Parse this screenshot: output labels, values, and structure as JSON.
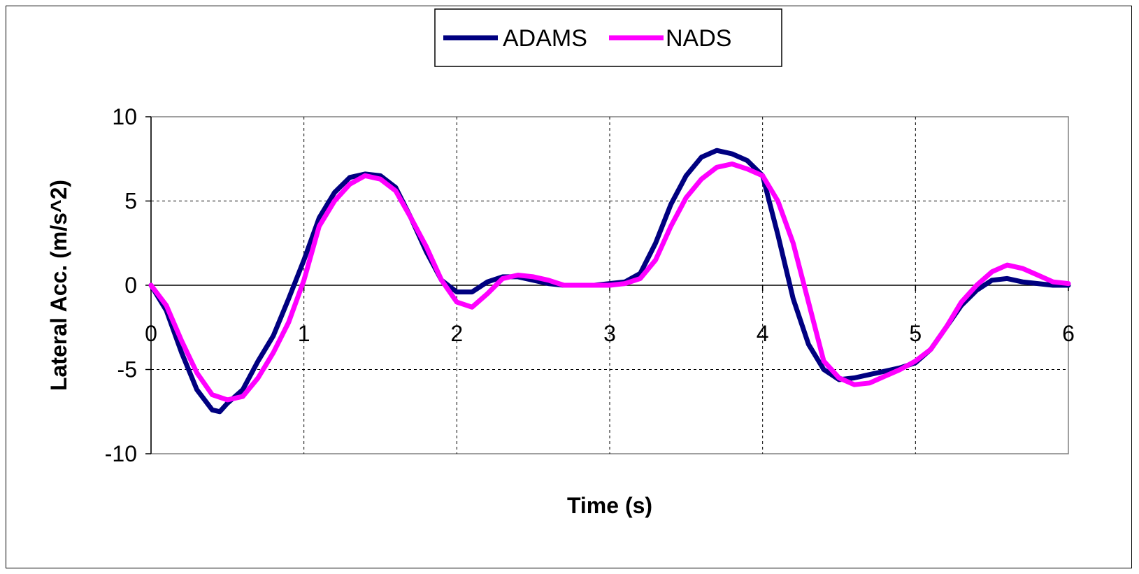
{
  "chart_data": {
    "type": "line",
    "xlabel": "Time (s)",
    "ylabel": "Lateral Acc. (m/s^2)",
    "xlim": [
      0,
      6
    ],
    "ylim": [
      -10,
      10
    ],
    "xticks": [
      0,
      1,
      2,
      3,
      4,
      5,
      6
    ],
    "yticks": [
      -10,
      -5,
      0,
      5,
      10
    ],
    "grid": true,
    "legend_position": "top-center",
    "series": [
      {
        "name": "ADAMS",
        "color": "#000080",
        "points": [
          [
            0,
            0
          ],
          [
            0.1,
            -1.5
          ],
          [
            0.2,
            -4.0
          ],
          [
            0.3,
            -6.2
          ],
          [
            0.4,
            -7.4
          ],
          [
            0.45,
            -7.5
          ],
          [
            0.5,
            -7.0
          ],
          [
            0.6,
            -6.2
          ],
          [
            0.7,
            -4.5
          ],
          [
            0.8,
            -3.0
          ],
          [
            0.9,
            -0.8
          ],
          [
            1.0,
            1.5
          ],
          [
            1.1,
            4.0
          ],
          [
            1.2,
            5.5
          ],
          [
            1.3,
            6.4
          ],
          [
            1.4,
            6.6
          ],
          [
            1.5,
            6.5
          ],
          [
            1.6,
            5.8
          ],
          [
            1.7,
            4.0
          ],
          [
            1.8,
            2.0
          ],
          [
            1.9,
            0.3
          ],
          [
            2.0,
            -0.4
          ],
          [
            2.1,
            -0.4
          ],
          [
            2.2,
            0.2
          ],
          [
            2.3,
            0.5
          ],
          [
            2.4,
            0.5
          ],
          [
            2.5,
            0.3
          ],
          [
            2.6,
            0.1
          ],
          [
            2.7,
            0.0
          ],
          [
            2.8,
            0.0
          ],
          [
            2.9,
            0.0
          ],
          [
            3.0,
            0.1
          ],
          [
            3.1,
            0.2
          ],
          [
            3.2,
            0.7
          ],
          [
            3.3,
            2.5
          ],
          [
            3.4,
            4.8
          ],
          [
            3.5,
            6.5
          ],
          [
            3.6,
            7.6
          ],
          [
            3.7,
            8.0
          ],
          [
            3.8,
            7.8
          ],
          [
            3.9,
            7.4
          ],
          [
            4.0,
            6.5
          ],
          [
            4.1,
            3.0
          ],
          [
            4.2,
            -0.8
          ],
          [
            4.3,
            -3.5
          ],
          [
            4.4,
            -5.0
          ],
          [
            4.5,
            -5.6
          ],
          [
            4.6,
            -5.5
          ],
          [
            4.7,
            -5.3
          ],
          [
            4.8,
            -5.1
          ],
          [
            4.9,
            -4.9
          ],
          [
            5.0,
            -4.6
          ],
          [
            5.1,
            -3.8
          ],
          [
            5.2,
            -2.5
          ],
          [
            5.3,
            -1.2
          ],
          [
            5.4,
            -0.3
          ],
          [
            5.5,
            0.3
          ],
          [
            5.6,
            0.4
          ],
          [
            5.7,
            0.2
          ],
          [
            5.8,
            0.1
          ],
          [
            5.9,
            0.0
          ],
          [
            6.0,
            0.0
          ]
        ]
      },
      {
        "name": "NADS",
        "color": "#ff00ff",
        "points": [
          [
            0,
            0
          ],
          [
            0.1,
            -1.2
          ],
          [
            0.2,
            -3.3
          ],
          [
            0.3,
            -5.2
          ],
          [
            0.4,
            -6.5
          ],
          [
            0.5,
            -6.8
          ],
          [
            0.6,
            -6.6
          ],
          [
            0.7,
            -5.5
          ],
          [
            0.8,
            -4.0
          ],
          [
            0.9,
            -2.2
          ],
          [
            1.0,
            0.3
          ],
          [
            1.1,
            3.5
          ],
          [
            1.2,
            5.0
          ],
          [
            1.3,
            6.0
          ],
          [
            1.4,
            6.5
          ],
          [
            1.5,
            6.3
          ],
          [
            1.6,
            5.6
          ],
          [
            1.7,
            4.0
          ],
          [
            1.8,
            2.3
          ],
          [
            1.9,
            0.3
          ],
          [
            2.0,
            -1.0
          ],
          [
            2.1,
            -1.3
          ],
          [
            2.2,
            -0.5
          ],
          [
            2.3,
            0.4
          ],
          [
            2.4,
            0.6
          ],
          [
            2.5,
            0.5
          ],
          [
            2.6,
            0.3
          ],
          [
            2.7,
            0.0
          ],
          [
            2.8,
            0.0
          ],
          [
            2.9,
            0.0
          ],
          [
            3.0,
            0.0
          ],
          [
            3.1,
            0.1
          ],
          [
            3.2,
            0.4
          ],
          [
            3.3,
            1.5
          ],
          [
            3.4,
            3.5
          ],
          [
            3.5,
            5.2
          ],
          [
            3.6,
            6.3
          ],
          [
            3.7,
            7.0
          ],
          [
            3.8,
            7.2
          ],
          [
            3.9,
            6.9
          ],
          [
            4.0,
            6.5
          ],
          [
            4.1,
            5.0
          ],
          [
            4.2,
            2.5
          ],
          [
            4.3,
            -1.0
          ],
          [
            4.4,
            -4.5
          ],
          [
            4.5,
            -5.5
          ],
          [
            4.6,
            -5.9
          ],
          [
            4.7,
            -5.8
          ],
          [
            4.8,
            -5.4
          ],
          [
            4.9,
            -5.0
          ],
          [
            5.0,
            -4.5
          ],
          [
            5.1,
            -3.8
          ],
          [
            5.2,
            -2.5
          ],
          [
            5.3,
            -1.0
          ],
          [
            5.4,
            0.0
          ],
          [
            5.5,
            0.8
          ],
          [
            5.6,
            1.2
          ],
          [
            5.7,
            1.0
          ],
          [
            5.8,
            0.6
          ],
          [
            5.9,
            0.2
          ],
          [
            6.0,
            0.1
          ]
        ]
      }
    ]
  }
}
